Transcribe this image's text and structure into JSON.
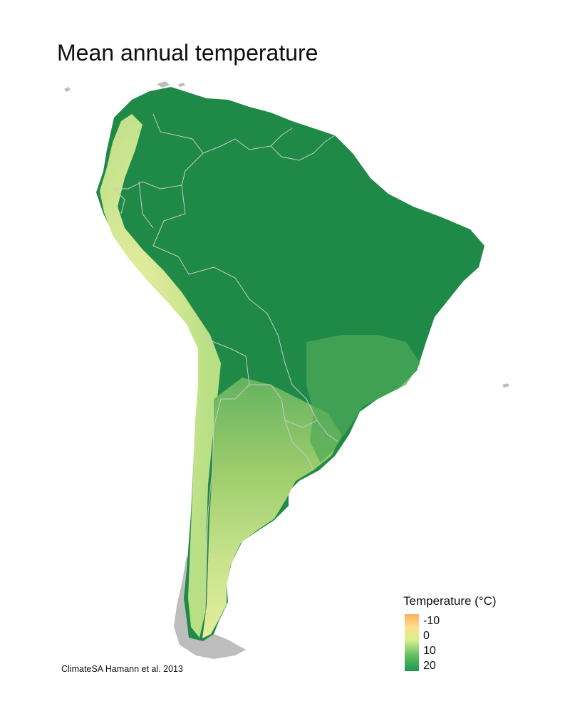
{
  "title": "Mean annual temperature",
  "credit": "ClimateSA Hamann et al. 2013",
  "legend": {
    "title": "Temperature (°C)",
    "ticks": [
      "-10",
      "0",
      "10",
      "20"
    ],
    "colors": [
      "#fdae61",
      "#fee08b",
      "#d9ef8b",
      "#66bd63",
      "#1a9850"
    ]
  },
  "map": {
    "region": "South America",
    "ocean_color": "#ffffff",
    "land_outside_color": "#bdbdbd",
    "warm_color": "#1a8a4a",
    "cool_color": "#f4f3a8",
    "border_color": "#c8c8c8"
  }
}
